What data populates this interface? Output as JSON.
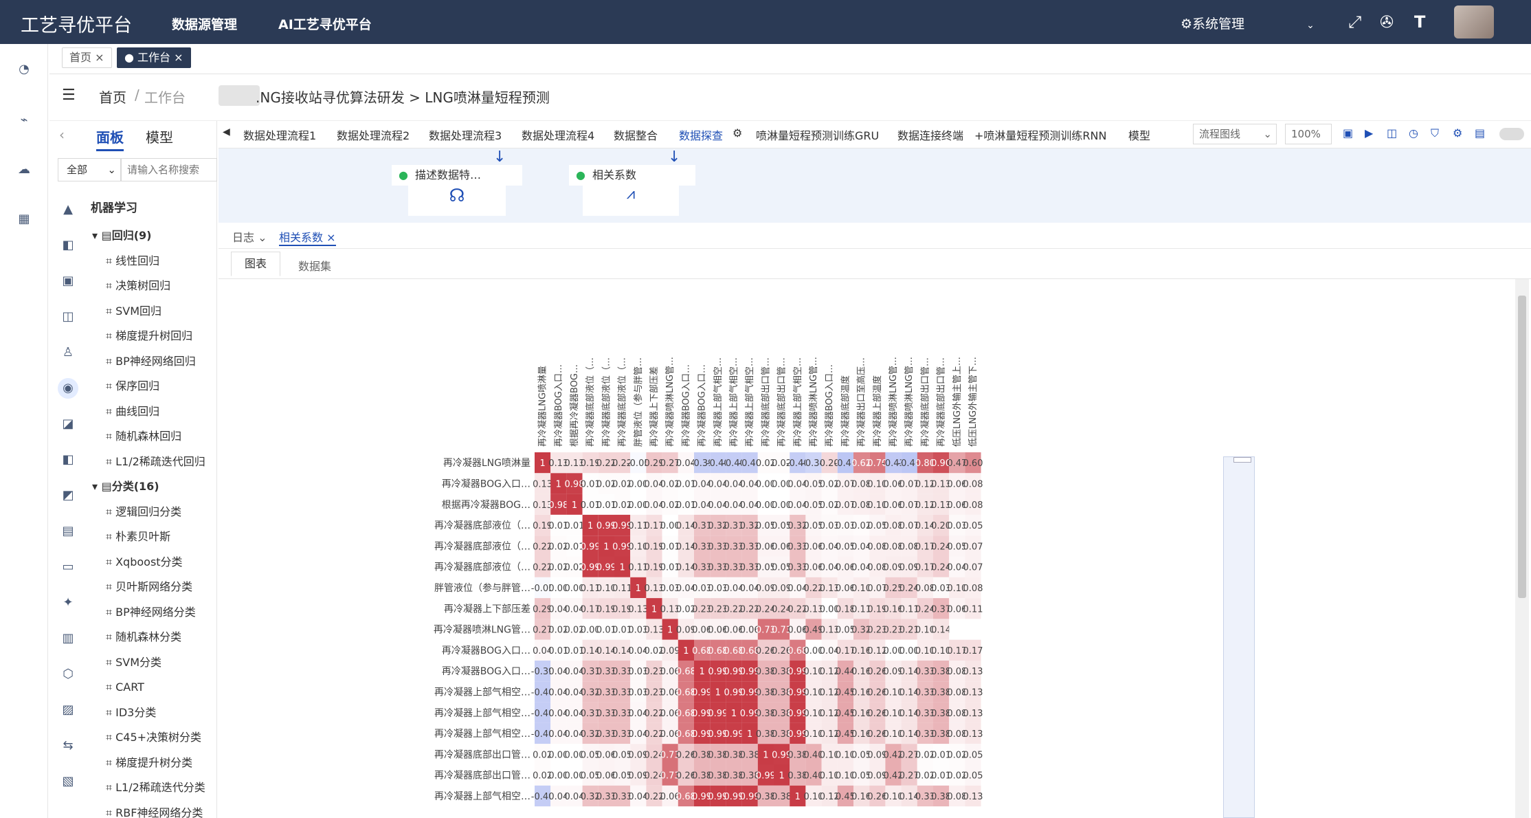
{
  "header": {
    "brand": "工艺寻优平台",
    "nav": [
      "数据源管理",
      "AI工艺寻优平台"
    ],
    "system": "系统管理",
    "icons": [
      "fullscreen-icon",
      "settings-icon",
      "font-size-icon"
    ]
  },
  "pagetabs": [
    {
      "label": "首页",
      "active": false
    },
    {
      "label": "工作台",
      "active": true
    }
  ],
  "breadcrumb": {
    "home": "首页",
    "sep": "/",
    "current": "工作台",
    "path": ".NG接收站寻优算法研发 > LNG喷淋量短程预测"
  },
  "leftpanel": {
    "tabs": [
      "面板",
      "模型"
    ],
    "filter": "全部",
    "search_placeholder": "请输入名称搜索",
    "category": "机器学习",
    "groups": [
      {
        "label": "回归(9)",
        "items": [
          "线性回归",
          "决策树回归",
          "SVM回归",
          "梯度提升树回归",
          "BP神经网络回归",
          "保序回归",
          "曲线回归",
          "随机森林回归",
          "L1/2稀疏迭代回归"
        ]
      },
      {
        "label": "分类(16)",
        "items": [
          "逻辑回归分类",
          "朴素贝叶斯",
          "Xqboost分类",
          "贝叶斯网络分类",
          "BP神经网络分类",
          "随机森林分类",
          "SVM分类",
          "CART",
          "ID3分类",
          "C45+决策树分类",
          "梯度提升树分类",
          "L1/2稀疏迭代分类",
          "RBF神经网络分类"
        ]
      }
    ]
  },
  "workflow_tabs": [
    "数据处理流程1",
    "数据处理流程2",
    "数据处理流程3",
    "数据处理流程4",
    "数据整合",
    "数据探查",
    "喷淋量短程预测训练GRU",
    "数据连接终端",
    "+喷淋量短程预测训练RNN",
    "模型"
  ],
  "workflow_active": "数据探查",
  "toolbar": {
    "mode": "流程图线",
    "zoom": "100%"
  },
  "canvas_nodes": [
    {
      "label": "描述数据特…"
    },
    {
      "label": "相关系数"
    }
  ],
  "logbar": {
    "log": "日志",
    "tab": "相关系数"
  },
  "viewtabs": {
    "chart": "图表",
    "dataset": "数据集"
  },
  "chart_data": {
    "type": "heatmap",
    "labels": [
      "再冷凝器LNG喷淋量",
      "再冷凝器BOG入口…",
      "根据再冷凝器BOG…",
      "再冷凝器底部液位（…",
      "再冷凝器底部液位（…",
      "再冷凝器底部液位（…",
      "胖管液位（参与胖管…",
      "再冷凝器上下部压差",
      "再冷凝器喷淋LNG管…",
      "再冷凝器BOG入口…",
      "再冷凝器BOG入口…",
      "再冷凝器上部气相空…",
      "再冷凝器上部气相空…",
      "再冷凝器上部气相空…",
      "再冷凝器底部出口管…",
      "再冷凝器底部出口管…",
      "再冷凝器上部气相空…",
      "再冷凝器喷淋LNG管…",
      "再冷凝器BOG入口…",
      "再冷凝器底部温度",
      "再冷凝器出口至高压…",
      "再冷凝器上部温度",
      "再冷凝器喷淋LNG管…",
      "再冷凝器喷淋LNG管…",
      "再冷凝器底部出口管…",
      "再冷凝器底部出口管…",
      "低压LNG外输主管上…",
      "低压LNG外输主管下…"
    ],
    "rows": [
      [
        "1",
        "0.13",
        "0.13",
        "0.19",
        "0.22",
        "0.22",
        "-0.05",
        "0.29",
        "0.27",
        "0.04",
        "-0.39",
        "-0.40",
        "-0.40",
        "-0.40",
        "0.02",
        "0.02",
        "-0.40",
        "-0.34",
        "0.20",
        "-0.46",
        "0.62",
        "0.70",
        "-0.43",
        "-0.46",
        "0.80",
        "0.90",
        "0.47",
        "0.60"
      ],
      [
        "0.13",
        "1",
        "0.98",
        "0.01",
        "0.02",
        "0.02",
        "0.00",
        "0.04",
        "0.02",
        "0.01",
        "0.04",
        "0.04",
        "0.04",
        "0.04",
        "0.00",
        "0.00",
        "0.04",
        "0.05",
        "0.02",
        "0.07",
        "0.08",
        "0.10",
        "0.06",
        "0.07",
        "0.12",
        "0.13",
        "0.06",
        "0.08"
      ],
      [
        "0.13",
        "0.98",
        "1",
        "0.01",
        "0.01",
        "0.02",
        "0.00",
        "0.04",
        "0.02",
        "0.01",
        "0.04",
        "0.04",
        "0.04",
        "0.04",
        "0.00",
        "0.00",
        "0.04",
        "0.05",
        "0.02",
        "0.07",
        "0.08",
        "0.10",
        "0.06",
        "0.07",
        "0.12",
        "0.13",
        "0.06",
        "0.08"
      ],
      [
        "0.19",
        "0.01",
        "0.01",
        "1",
        "0.99",
        "0.99",
        "0.11",
        "0.17",
        "0.00",
        "0.14",
        "0.31",
        "0.32",
        "0.31",
        "0.32",
        "0.05",
        "0.05",
        "0.32",
        "0.05",
        "0.03",
        "0.03",
        "0.02",
        "0.05",
        "0.08",
        "0.07",
        "0.14",
        "0.20",
        "0.03",
        "0.05"
      ],
      [
        "0.22",
        "0.02",
        "0.01",
        "0.99",
        "1",
        "0.99",
        "0.10",
        "0.19",
        "0.01",
        "0.14",
        "0.33",
        "0.33",
        "0.33",
        "0.33",
        "0.06",
        "0.06",
        "0.33",
        "0.06",
        "0.04",
        "0.05",
        "0.04",
        "0.08",
        "0.08",
        "0.08",
        "0.17",
        "0.24",
        "0.05",
        "0.07"
      ],
      [
        "0.22",
        "0.02",
        "0.02",
        "0.99",
        "0.99",
        "1",
        "0.11",
        "0.19",
        "0.01",
        "0.14",
        "0.33",
        "0.33",
        "0.33",
        "0.33",
        "0.05",
        "0.05",
        "0.33",
        "0.06",
        "0.04",
        "0.06",
        "0.04",
        "0.08",
        "0.09",
        "0.09",
        "0.17",
        "0.24",
        "0.04",
        "0.07"
      ],
      [
        "-0.05",
        "0.00",
        "0.00",
        "0.11",
        "0.10",
        "0.11",
        "1",
        "0.13",
        "0.03",
        "0.04",
        "0.03",
        "0.03",
        "0.04",
        "0.04",
        "0.09",
        "0.09",
        "0.04",
        "0.22",
        "0.13",
        "0.06",
        "0.10",
        "0.07",
        "0.25",
        "0.24",
        "0.08",
        "0.03",
        "0.10",
        "0.08"
      ],
      [
        "0.29",
        "0.04",
        "0.04",
        "0.17",
        "0.19",
        "0.19",
        "0.13",
        "1",
        "0.13",
        "0.02",
        "0.23",
        "0.23",
        "0.22",
        "0.22",
        "0.24",
        "0.24",
        "0.22",
        "0.13",
        "0.00",
        "0.18",
        "0.11",
        "0.19",
        "0.16",
        "0.11",
        "0.24",
        "0.37",
        "0.06",
        "0.11"
      ],
      [
        "0.27",
        "0.02",
        "0.02",
        "0.00",
        "0.01",
        "0.01",
        "0.03",
        "0.13",
        "1",
        "0.09",
        "0.06",
        "0.06",
        "0.06",
        "0.06",
        "0.73",
        "0.73",
        "0.06",
        "0.49",
        "0.13",
        "0.05",
        "0.32",
        "0.23",
        "0.23",
        "0.21",
        "0.10",
        "0.14",
        "",
        ""
      ],
      [
        "0.04",
        "0.01",
        "0.01",
        "0.14",
        "0.14",
        "0.14",
        "0.04",
        "0.02",
        "0.09",
        "1",
        "0.68",
        "0.68",
        "0.68",
        "0.68",
        "0.26",
        "0.26",
        "0.68",
        "0.00",
        "0.04",
        "0.17",
        "0.16",
        "0.12",
        "0.00",
        "0.00",
        "0.10",
        "0.10",
        "0.17",
        "0.17"
      ],
      [
        "-0.39",
        "0.04",
        "0.04",
        "0.31",
        "0.33",
        "0.33",
        "0.03",
        "0.23",
        "0.06",
        "0.68",
        "1",
        "0.99",
        "0.99",
        "0.99",
        "0.38",
        "0.38",
        "0.99",
        "0.10",
        "0.12",
        "0.44",
        "0.16",
        "0.26",
        "0.09",
        "0.14",
        "0.33",
        "0.38",
        "0.08",
        "0.13"
      ],
      [
        "-0.40",
        "0.04",
        "0.04",
        "0.32",
        "0.33",
        "0.33",
        "0.03",
        "0.23",
        "0.06",
        "0.68",
        "0.99",
        "1",
        "0.99",
        "0.99",
        "0.38",
        "0.38",
        "0.99",
        "0.10",
        "0.12",
        "0.45",
        "0.16",
        "0.26",
        "0.10",
        "0.14",
        "0.33",
        "0.38",
        "0.08",
        "0.13"
      ],
      [
        "-0.40",
        "0.04",
        "0.04",
        "0.31",
        "0.33",
        "0.33",
        "0.04",
        "0.22",
        "0.06",
        "0.68",
        "0.99",
        "0.99",
        "1",
        "0.99",
        "0.38",
        "0.38",
        "0.99",
        "0.10",
        "0.12",
        "0.45",
        "0.16",
        "0.26",
        "0.10",
        "0.14",
        "0.33",
        "0.38",
        "0.08",
        "0.13"
      ],
      [
        "-0.40",
        "0.04",
        "0.04",
        "0.32",
        "0.33",
        "0.33",
        "0.04",
        "0.22",
        "0.06",
        "0.68",
        "0.99",
        "0.99",
        "0.99",
        "1",
        "0.38",
        "0.38",
        "0.99",
        "0.10",
        "0.12",
        "0.45",
        "0.16",
        "0.26",
        "0.10",
        "0.14",
        "0.33",
        "0.38",
        "0.08",
        "0.13"
      ],
      [
        "0.02",
        "0.00",
        "0.00",
        "0.05",
        "0.06",
        "0.05",
        "0.09",
        "0.24",
        "0.73",
        "0.26",
        "0.38",
        "0.38",
        "0.38",
        "0.38",
        "1",
        "0.99",
        "0.38",
        "0.40",
        "0.10",
        "0.10",
        "0.05",
        "0.09",
        "0.42",
        "0.27",
        "0.02",
        "0.01",
        "0.02",
        "0.05"
      ],
      [
        "0.02",
        "0.00",
        "0.00",
        "0.05",
        "0.06",
        "0.05",
        "0.09",
        "0.24",
        "0.73",
        "0.26",
        "0.38",
        "0.38",
        "0.38",
        "0.38",
        "0.99",
        "1",
        "0.38",
        "0.40",
        "0.10",
        "0.10",
        "0.05",
        "0.09",
        "0.42",
        "0.27",
        "0.02",
        "0.01",
        "0.02",
        "0.05"
      ],
      [
        "-0.40",
        "0.04",
        "0.04",
        "0.32",
        "0.33",
        "0.33",
        "0.04",
        "0.22",
        "0.06",
        "0.68",
        "0.99",
        "0.99",
        "0.99",
        "0.99",
        "0.38",
        "0.38",
        "1",
        "0.10",
        "0.12",
        "0.45",
        "0.16",
        "0.26",
        "0.10",
        "0.14",
        "0.33",
        "0.38",
        "0.08",
        "0.13"
      ]
    ]
  }
}
